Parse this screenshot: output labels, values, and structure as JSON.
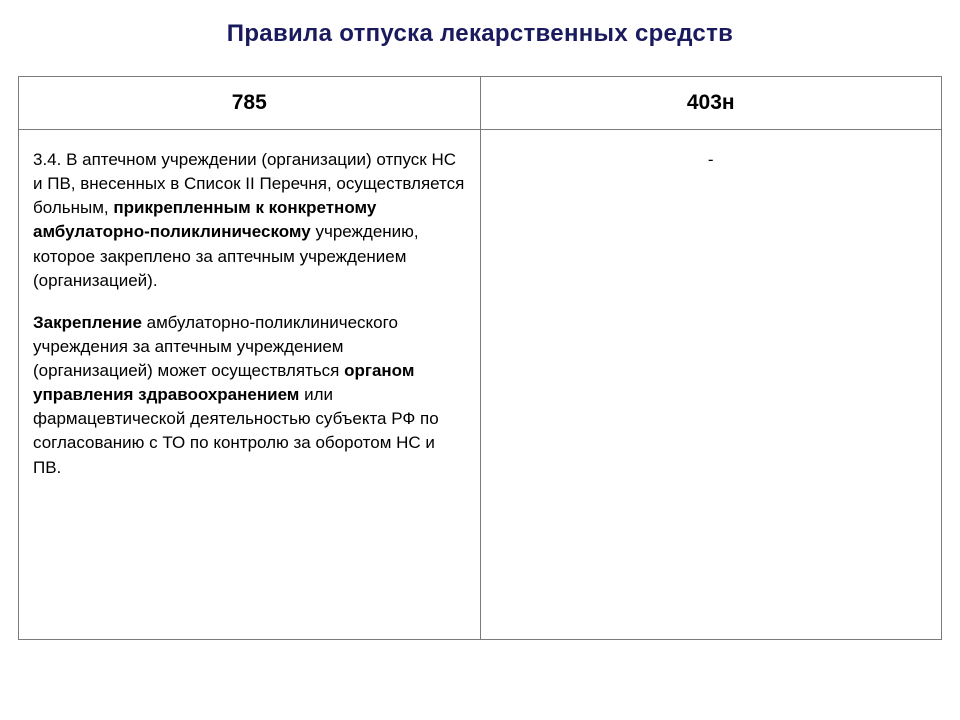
{
  "title": "Правила отпуска лекарственных средств",
  "table": {
    "headers": [
      "785",
      "403н"
    ],
    "left_cell": {
      "p1_prefix": "3.4. В аптечном учреждении (организации) отпуск НС и ПВ, внесенных в Список II Перечня, осуществляется больным, ",
      "p1_bold": "прикрепленным к конкретному амбулаторно-поликлиническому",
      "p1_suffix": " учреждению, которое закреплено за аптечным учреждением (организацией).",
      "p2_bold1": "Закрепление",
      "p2_mid": " амбулаторно-поликлинического учреждения за аптечным учреждением (организацией) может осуществляться ",
      "p2_bold2": "органом управления здравоохранением",
      "p2_suffix": " или фармацевтической деятельностью субъекта РФ по согласованию с ТО по контролю за оборотом НС и ПВ."
    },
    "right_cell": "-"
  },
  "colors": {
    "title_color": "#1a1a5e",
    "border_color": "#7a7a7a",
    "text_color": "#000000",
    "background": "#ffffff"
  },
  "typography": {
    "title_fontsize": 24,
    "header_fontsize": 21,
    "body_fontsize": 17,
    "font_family": "Arial"
  }
}
